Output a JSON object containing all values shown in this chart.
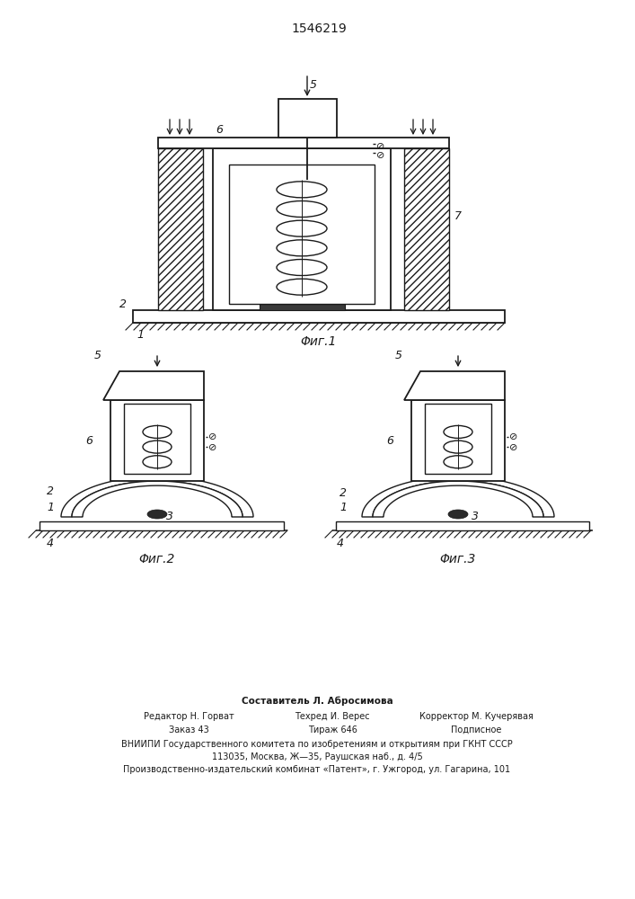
{
  "patent_number": "1546219",
  "fig1_caption": "Φиг.1",
  "fig2_caption": "Φиг.2",
  "fig3_caption": "Φиг.3",
  "footer_line1": "Составитель Л. Абросимова",
  "footer_line2a": "Редактор Н. Горват",
  "footer_line2b": "Техред И. Верес",
  "footer_line2c": "Корректор М. Кучерявая",
  "footer_line3a": "Заказ 43",
  "footer_line3b": "Тираж 646",
  "footer_line3c": "Подписное",
  "footer_line4": "ВНИИПИ Государственного комитета по изобретениям и открытиям при ГКНТ СССР",
  "footer_line5": "113035, Москва, Ж—35, Раушская наб., д. 4/5",
  "footer_line6": "Производственно-издательский комбинат «Патент», г. Ужгород, ул. Гагарина, 101",
  "bg_color": "#ffffff",
  "line_color": "#1a1a1a"
}
